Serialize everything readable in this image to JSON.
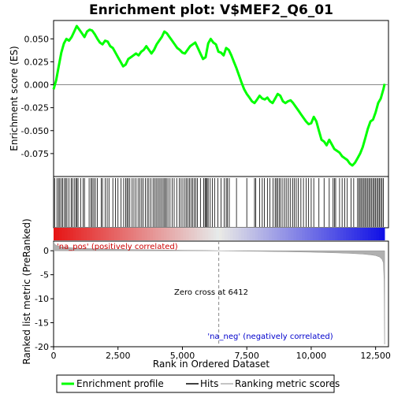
{
  "chart_data": {
    "type": "line",
    "title": "Enrichment plot: V$MEF2_Q6_01",
    "top_panel": {
      "ylabel": "Enrichment score (ES)",
      "ylim": [
        -0.1,
        0.07
      ],
      "y_ticks": [
        "0.050",
        "0.025",
        "0.000",
        "-0.025",
        "-0.050",
        "-0.075"
      ],
      "y_tick_values": [
        0.05,
        0.025,
        0.0,
        -0.025,
        -0.05,
        -0.075
      ],
      "series": [
        {
          "name": "Enrichment profile",
          "color": "#00ff00",
          "x": [
            0,
            100,
            200,
            300,
            400,
            500,
            600,
            700,
            800,
            900,
            1000,
            1100,
            1200,
            1300,
            1400,
            1500,
            1600,
            1700,
            1800,
            1900,
            2000,
            2100,
            2200,
            2300,
            2400,
            2500,
            2600,
            2700,
            2800,
            2900,
            3000,
            3100,
            3200,
            3300,
            3400,
            3500,
            3600,
            3700,
            3800,
            3900,
            4000,
            4100,
            4200,
            4300,
            4400,
            4500,
            4600,
            4700,
            4800,
            4900,
            5000,
            5100,
            5200,
            5300,
            5400,
            5500,
            5600,
            5700,
            5800,
            5900,
            6000,
            6100,
            6200,
            6300,
            6400,
            6500,
            6600,
            6700,
            6800,
            6900,
            7000,
            7100,
            7200,
            7300,
            7400,
            7500,
            7600,
            7700,
            7800,
            7900,
            8000,
            8100,
            8200,
            8300,
            8400,
            8500,
            8600,
            8700,
            8800,
            8900,
            9000,
            9100,
            9200,
            9300,
            9400,
            9500,
            9600,
            9700,
            9800,
            9900,
            10000,
            10100,
            10200,
            10300,
            10400,
            10500,
            10600,
            10700,
            10800,
            10900,
            11000,
            11100,
            11200,
            11300,
            11400,
            11500,
            11600,
            11700,
            11800,
            11900,
            12000,
            12100,
            12200,
            12300,
            12400,
            12500,
            12600,
            12700,
            12800,
            12850
          ],
          "y": [
            -0.005,
            0.005,
            0.02,
            0.035,
            0.045,
            0.05,
            0.048,
            0.052,
            0.058,
            0.064,
            0.06,
            0.056,
            0.052,
            0.058,
            0.06,
            0.059,
            0.055,
            0.05,
            0.046,
            0.044,
            0.048,
            0.047,
            0.042,
            0.04,
            0.035,
            0.03,
            0.025,
            0.02,
            0.022,
            0.028,
            0.03,
            0.032,
            0.034,
            0.032,
            0.036,
            0.038,
            0.042,
            0.038,
            0.034,
            0.038,
            0.044,
            0.048,
            0.052,
            0.058,
            0.056,
            0.052,
            0.048,
            0.044,
            0.04,
            0.038,
            0.035,
            0.034,
            0.038,
            0.042,
            0.044,
            0.046,
            0.04,
            0.034,
            0.028,
            0.03,
            0.045,
            0.05,
            0.046,
            0.044,
            0.036,
            0.035,
            0.032,
            0.04,
            0.038,
            0.032,
            0.025,
            0.018,
            0.01,
            0.002,
            -0.005,
            -0.01,
            -0.014,
            -0.018,
            -0.02,
            -0.016,
            -0.012,
            -0.015,
            -0.016,
            -0.014,
            -0.018,
            -0.02,
            -0.015,
            -0.01,
            -0.012,
            -0.018,
            -0.02,
            -0.018,
            -0.017,
            -0.02,
            -0.024,
            -0.028,
            -0.032,
            -0.036,
            -0.04,
            -0.043,
            -0.042,
            -0.035,
            -0.04,
            -0.05,
            -0.06,
            -0.062,
            -0.066,
            -0.06,
            -0.065,
            -0.07,
            -0.072,
            -0.074,
            -0.078,
            -0.08,
            -0.082,
            -0.086,
            -0.088,
            -0.085,
            -0.08,
            -0.075,
            -0.068,
            -0.058,
            -0.048,
            -0.04,
            -0.038,
            -0.03,
            -0.02,
            -0.015,
            -0.005,
            0.001
          ]
        }
      ],
      "zero_line": 0.0
    },
    "hits_panel": {
      "legend_label": "Hits",
      "hit_positions": [
        40,
        130,
        190,
        240,
        300,
        350,
        420,
        470,
        520,
        600,
        680,
        730,
        800,
        860,
        900,
        950,
        1050,
        1150,
        1200,
        1380,
        1450,
        1500,
        1560,
        1620,
        1700,
        1850,
        1900,
        2000,
        2080,
        2150,
        2300,
        2400,
        2500,
        2620,
        2720,
        2800,
        2850,
        2900,
        2960,
        3050,
        3120,
        3200,
        3280,
        3350,
        3420,
        3480,
        3560,
        3640,
        3700,
        3780,
        3860,
        3920,
        3980,
        4040,
        4100,
        4160,
        4220,
        4280,
        4330,
        4380,
        4440,
        4520,
        4600,
        4680,
        4780,
        4880,
        4950,
        5020,
        5100,
        5160,
        5220,
        5280,
        5340,
        5400,
        5460,
        5520,
        5580,
        5700,
        5830,
        5880,
        5920,
        5960,
        6000,
        6080,
        6160,
        6250,
        6380,
        6500,
        6620,
        6700,
        6750,
        6820,
        7100,
        7500,
        7800,
        7850,
        8000,
        8100,
        8180,
        8300,
        8400,
        8520,
        8600,
        8650,
        8700,
        8760,
        8820,
        8900,
        8980,
        9050,
        9120,
        9200,
        9280,
        9350,
        9420,
        9500,
        9600,
        9700,
        9800,
        9900,
        10000,
        10100,
        10300,
        10500,
        10700,
        10850,
        10900,
        10950,
        11100,
        11200,
        11300,
        11400,
        11550,
        11650,
        11800,
        11850,
        11900,
        11950,
        12000,
        12050,
        12100,
        12150,
        12200,
        12250,
        12300,
        12350,
        12400,
        12450,
        12500,
        12550,
        12600,
        12650,
        12700,
        12750,
        12800
      ]
    },
    "bottom_panel": {
      "ylabel": "Ranked list metric (PreRanked)",
      "xlabel": "Rank in Ordered Dataset",
      "ylim": [
        -20,
        2
      ],
      "y_ticks": [
        "0",
        "-5",
        "-10",
        "-15",
        "-20"
      ],
      "y_tick_values": [
        0,
        -5,
        -10,
        -15,
        -20
      ],
      "legend_label": "Ranking metric scores",
      "metric_x": [
        0,
        50,
        150,
        300,
        600,
        1000,
        2000,
        3000,
        4000,
        5000,
        6000,
        6412,
        7000,
        8000,
        9000,
        10000,
        11000,
        11500,
        12000,
        12300,
        12500,
        12650,
        12750,
        12800,
        12830,
        12850
      ],
      "metric_y": [
        1.8,
        1.3,
        1.0,
        0.8,
        0.65,
        0.5,
        0.35,
        0.25,
        0.18,
        0.1,
        0.05,
        0.0,
        -0.05,
        -0.12,
        -0.2,
        -0.3,
        -0.45,
        -0.55,
        -0.7,
        -0.85,
        -1.0,
        -1.3,
        -1.8,
        -2.5,
        -6.0,
        -19.5
      ],
      "annotation_pos": "'na_pos' (positively correlated)",
      "annotation_neg": "'na_neg' (negatively correlated)",
      "annotation_zero": "Zero cross at 6412",
      "zero_cross": 6412
    },
    "x_axis": {
      "xlim": [
        0,
        13000
      ],
      "x_ticks": [
        "0",
        "2,500",
        "5,000",
        "7,500",
        "10,000",
        "12,500"
      ],
      "x_tick_values": [
        0,
        2500,
        5000,
        7500,
        10000,
        12500
      ],
      "n_genes": 12850
    },
    "legend": {
      "items": [
        "Enrichment profile",
        "Hits",
        "Ranking metric scores"
      ],
      "placement": "bottom"
    }
  }
}
